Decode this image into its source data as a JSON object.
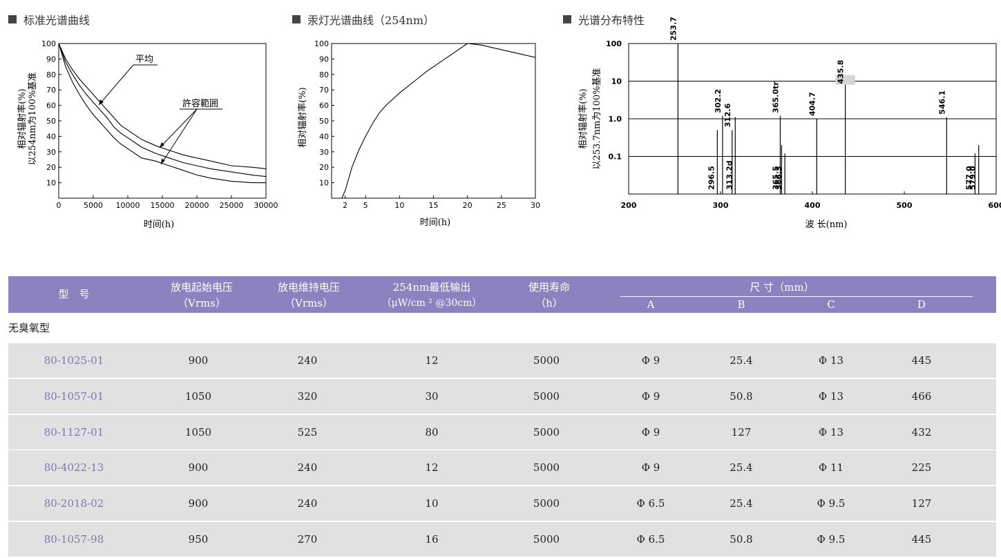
{
  "sections": [
    {
      "title": "标准光谱曲线"
    },
    {
      "title": "汞灯光谱曲线（254nm）"
    },
    {
      "title": "光谱分布特性"
    }
  ],
  "chart_data": [
    {
      "type": "line",
      "title": "标准光谱曲线",
      "xlabel": "时间(h)",
      "ylabel": [
        "相对辐射率(%)",
        "以254nm为100%基准"
      ],
      "xlim": [
        0,
        30000
      ],
      "ylim": [
        0,
        100
      ],
      "x_ticks": [
        "0",
        "5000",
        "10000",
        "15000",
        "20000",
        "25000",
        "30000"
      ],
      "y_ticks": [
        "10",
        "20",
        "30",
        "40",
        "50",
        "60",
        "70",
        "80",
        "90",
        "100"
      ],
      "annotations": [
        "平均",
        "許容範囲"
      ],
      "series": [
        {
          "x": [
            0,
            1000,
            2000,
            3000,
            4000,
            5000,
            6000,
            7000,
            8000,
            9000,
            10000,
            12000,
            14000,
            16000,
            18000,
            20000,
            22000,
            25000,
            28000,
            30000
          ],
          "values": [
            100,
            90,
            83,
            77,
            72,
            67,
            62,
            57,
            52,
            47,
            44,
            38,
            34,
            31,
            28,
            26,
            24,
            21,
            20,
            19
          ]
        },
        {
          "x": [
            0,
            1000,
            2000,
            3000,
            4000,
            5000,
            6000,
            7000,
            8000,
            9000,
            10000,
            12000,
            14000,
            16000,
            18000,
            20000,
            22000,
            25000,
            28000,
            30000
          ],
          "values": [
            100,
            88,
            80,
            73,
            67,
            62,
            57,
            52,
            46,
            42,
            39,
            33,
            29,
            26,
            23,
            21,
            19,
            17,
            15,
            14
          ]
        },
        {
          "x": [
            0,
            1000,
            2000,
            3000,
            4000,
            5000,
            6000,
            7000,
            8000,
            9000,
            10000,
            12000,
            14000,
            16000,
            18000,
            20000,
            22000,
            25000,
            28000,
            30000
          ],
          "values": [
            100,
            85,
            75,
            67,
            60,
            54,
            49,
            44,
            39,
            35,
            32,
            26,
            24,
            21,
            18,
            15,
            13,
            11,
            10,
            10
          ]
        }
      ]
    },
    {
      "type": "line",
      "title": "汞灯光谱曲线（254nm）",
      "xlabel": "时间(h)",
      "ylabel": "相对辐射率(%)",
      "xlim": [
        0,
        30
      ],
      "ylim": [
        0,
        100
      ],
      "x_ticks": [
        "2",
        "5",
        "10",
        "15",
        "20",
        "25",
        "30"
      ],
      "y_ticks": [
        "10",
        "20",
        "30",
        "40",
        "50",
        "60",
        "70",
        "80",
        "90",
        "100"
      ],
      "series": [
        {
          "x": [
            1.5,
            2,
            3,
            4,
            5,
            6,
            7,
            8,
            10,
            12,
            14,
            16,
            18,
            20,
            22,
            24,
            26,
            28,
            30
          ],
          "values": [
            0,
            5,
            20,
            31,
            40,
            48,
            55,
            60,
            68,
            75,
            82,
            88,
            94,
            100,
            99,
            97,
            95,
            93,
            91
          ]
        }
      ]
    },
    {
      "type": "bar",
      "title": "光谱分布特性",
      "xlabel": "波 长(nm)",
      "ylabel": [
        "相对辐射率(%)",
        "以253.7nm为100%基准"
      ],
      "scale": "log",
      "xlim": [
        200,
        600
      ],
      "ylim": [
        0.01,
        100
      ],
      "x_ticks": [
        "200",
        "300",
        "400",
        "500",
        "600"
      ],
      "y_ticks": [
        "100",
        "10",
        "1.0",
        "0.1"
      ],
      "lines": [
        {
          "label": "253.7",
          "x": 253.7,
          "value": 100
        },
        {
          "label": "296.5",
          "x": 296.5,
          "value": 0.5
        },
        {
          "label": "302.2",
          "x": 302.2,
          "value": 1.2
        },
        {
          "label": "312.6",
          "x": 312.6,
          "value": 0.5
        },
        {
          "label": "313.2d",
          "x": 316,
          "value": 1.1
        },
        {
          "label": "365.0tr",
          "x": 365.0,
          "value": 1.2
        },
        {
          "label": "365.5",
          "x": 366.5,
          "value": 0.2
        },
        {
          "label": "366.3",
          "x": 370,
          "value": 0.12
        },
        {
          "label": "404.7",
          "x": 404.7,
          "value": 1.0
        },
        {
          "label": "435.8",
          "x": 435.8,
          "value": 8
        },
        {
          "label": "546.1",
          "x": 546.1,
          "value": 1.1
        },
        {
          "label": "577.0",
          "x": 577.0,
          "value": 0.12
        },
        {
          "label": "579.0",
          "x": 581.0,
          "value": 0.2
        }
      ]
    }
  ],
  "table": {
    "headers": {
      "model": "型　号",
      "start_voltage": [
        "放电起始电压",
        "（Vrms）"
      ],
      "sustain_voltage": [
        "放电维持电压",
        "（Vrms）"
      ],
      "output": [
        "254nm最低输出",
        "（μW/cm ² @30cm）"
      ],
      "life": [
        "使用寿命",
        "（h）"
      ],
      "dimension": "尺 寸（mm）",
      "dims": [
        "A",
        "B",
        "C",
        "D"
      ]
    },
    "section_label": "无臭氧型",
    "rows": [
      [
        "80-1025-01",
        "900",
        "240",
        "12",
        "5000",
        "Φ 9",
        "25.4",
        "Φ 13",
        "445"
      ],
      [
        "80-1057-01",
        "1050",
        "320",
        "30",
        "5000",
        "Φ 9",
        "50.8",
        "Φ 13",
        "466"
      ],
      [
        "80-1127-01",
        "1050",
        "525",
        "80",
        "5000",
        "Φ 9",
        "127",
        "Φ 13",
        "432"
      ],
      [
        "80-4022-13",
        "900",
        "240",
        "12",
        "5000",
        "Φ 9",
        "25.4",
        "Φ 11",
        "225"
      ],
      [
        "80-2018-02",
        "900",
        "240",
        "10",
        "5000",
        "Φ 6.5",
        "25.4",
        "Φ 9.5",
        "127"
      ],
      [
        "80-1057-98",
        "950",
        "270",
        "16",
        "5000",
        "Φ 6.5",
        "50.8",
        "Φ 9.5",
        "445"
      ]
    ]
  }
}
